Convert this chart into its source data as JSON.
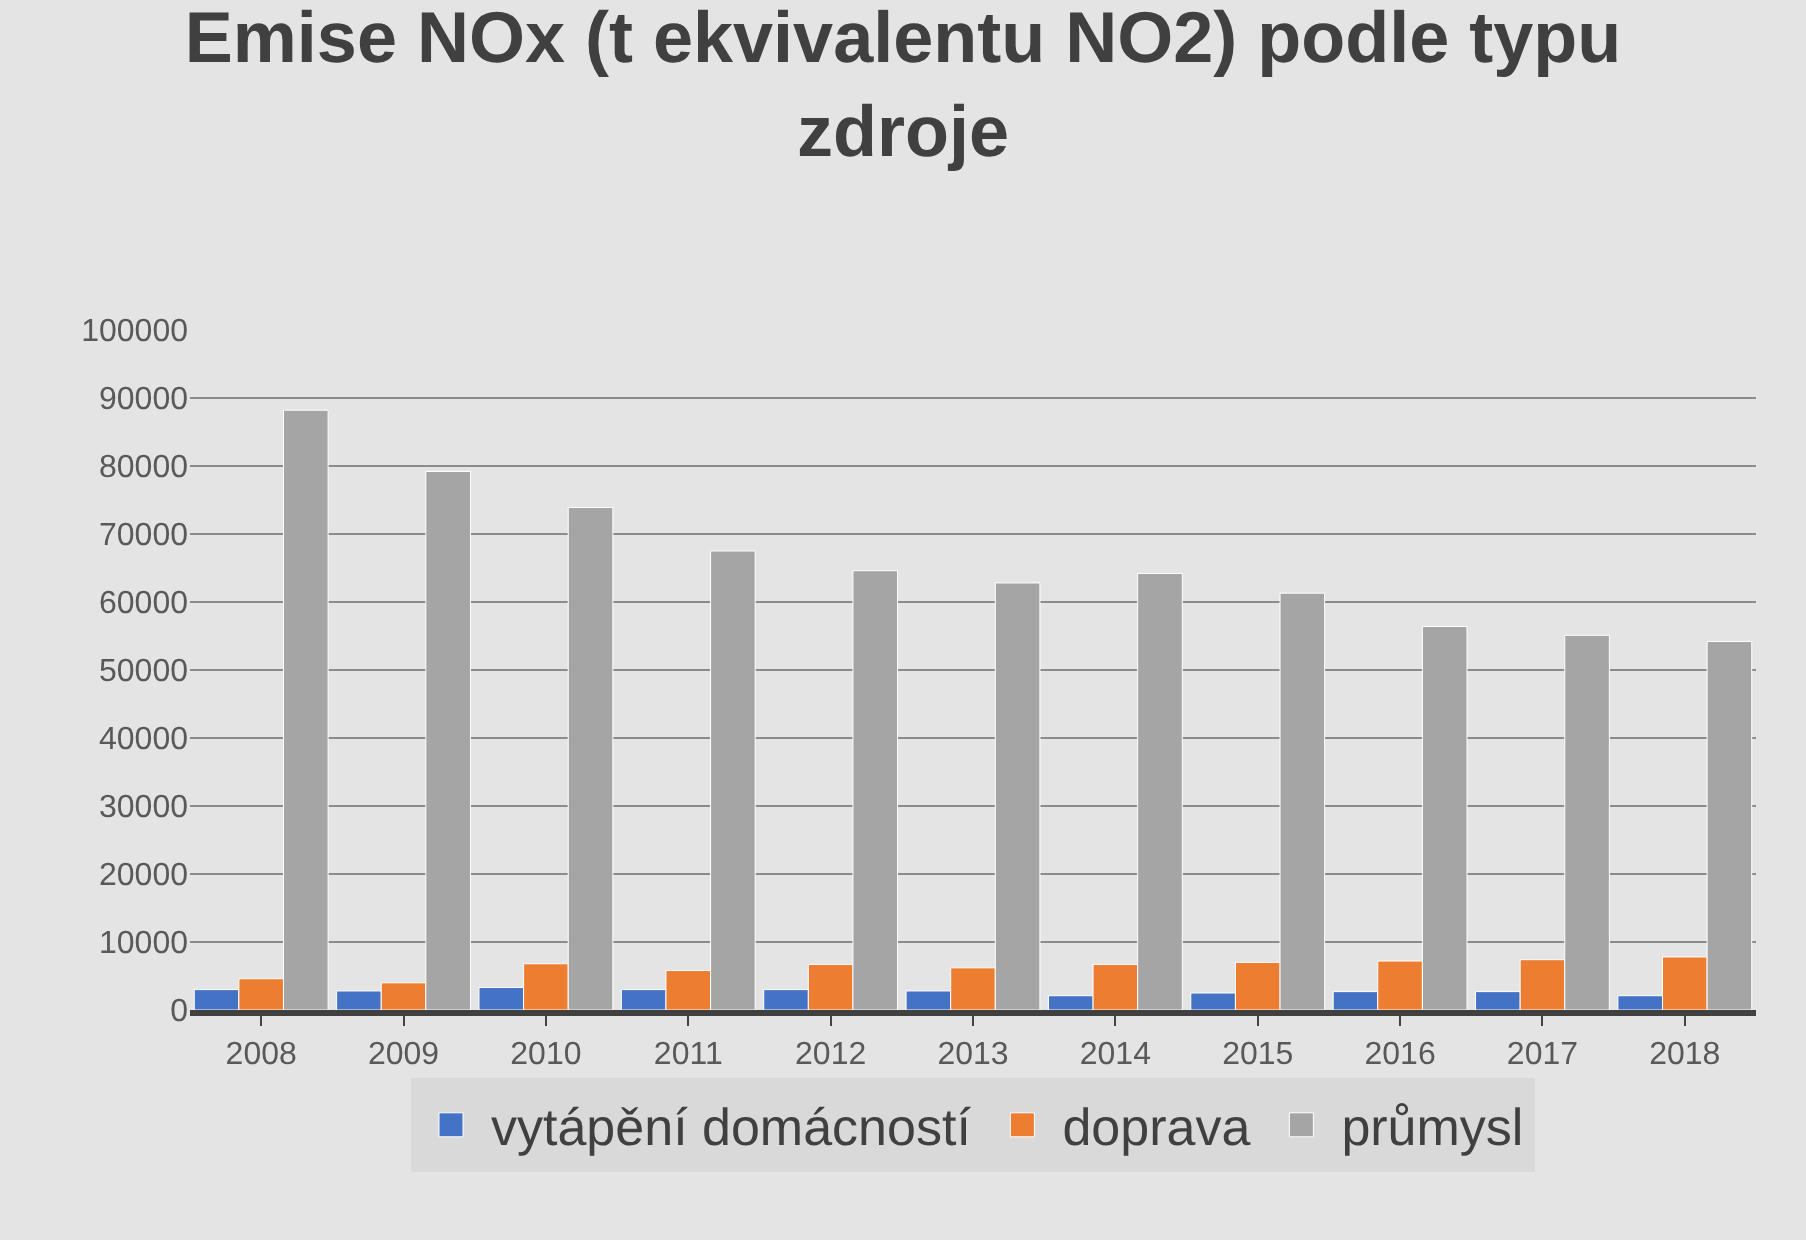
{
  "chart_data": {
    "type": "bar",
    "title": "Emise NOx (t ekvivalentu NO2) podle typu zdroje",
    "categories": [
      "2008",
      "2009",
      "2010",
      "2011",
      "2012",
      "2013",
      "2014",
      "2015",
      "2016",
      "2017",
      "2018"
    ],
    "series": [
      {
        "name": "vytápění domácností",
        "color": "#4472c4",
        "values": [
          3000,
          2800,
          3300,
          3000,
          3000,
          2800,
          2100,
          2500,
          2700,
          2700,
          2100
        ]
      },
      {
        "name": "doprava",
        "color": "#ed7d31",
        "values": [
          4600,
          4000,
          6800,
          5800,
          6700,
          6200,
          6700,
          7000,
          7200,
          7400,
          7800
        ]
      },
      {
        "name": "průmysl",
        "color": "#a5a5a5",
        "values": [
          88200,
          79200,
          73900,
          67500,
          64600,
          62800,
          64200,
          61300,
          56400,
          55100,
          54200
        ]
      }
    ],
    "ylim": [
      0,
      100000
    ],
    "yticks": [
      0,
      10000,
      20000,
      30000,
      40000,
      50000,
      60000,
      70000,
      80000,
      90000,
      100000
    ],
    "grid": "y",
    "legend": "bottom"
  }
}
